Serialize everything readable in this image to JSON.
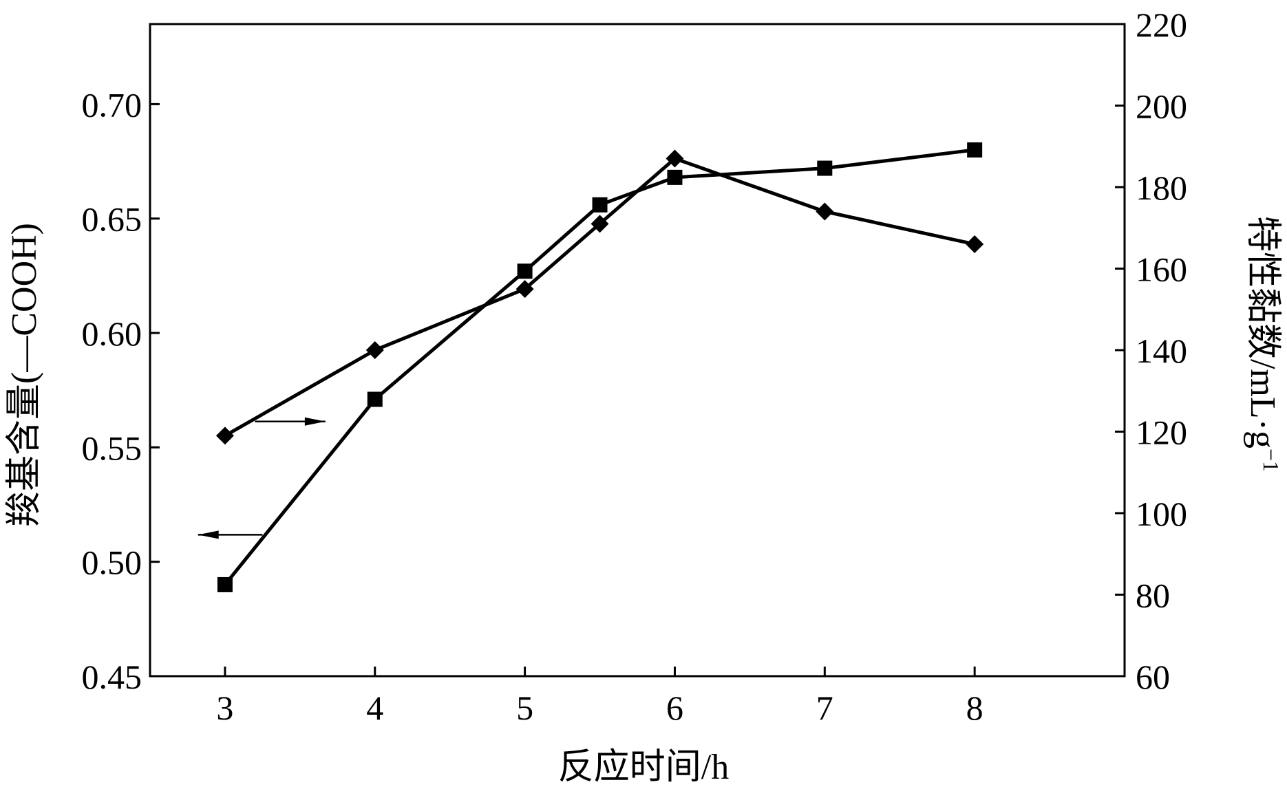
{
  "chart_data": {
    "type": "line",
    "title": "",
    "xlabel": "反应时间/h",
    "ylabel_left": "羧基含量(—COOH)",
    "ylabel_right_main": "特性黏数/mL·g",
    "ylabel_right_sup": "−1",
    "xlim": [
      2.5,
      9.0
    ],
    "ylim_left": [
      0.45,
      0.735
    ],
    "ylim_right": [
      60,
      220
    ],
    "x_ticks": [
      3,
      4,
      5,
      6,
      7,
      8
    ],
    "x_tick_labels": [
      "3",
      "4",
      "5",
      "6",
      "7",
      "8"
    ],
    "y_left_ticks": [
      0.45,
      0.5,
      0.55,
      0.6,
      0.65,
      0.7
    ],
    "y_left_tick_labels": [
      "0.45",
      "0.50",
      "0.55",
      "0.60",
      "0.65",
      "0.70"
    ],
    "y_right_ticks": [
      60,
      80,
      100,
      120,
      140,
      160,
      180,
      200,
      220
    ],
    "y_right_tick_labels": [
      "60",
      "80",
      "100",
      "120",
      "140",
      "160",
      "180",
      "200",
      "220"
    ],
    "grid": false,
    "series": [
      {
        "axis": "left",
        "marker": "square",
        "x": [
          3,
          4,
          5,
          5.5,
          6,
          7,
          8
        ],
        "values": [
          0.49,
          0.571,
          0.627,
          0.656,
          0.668,
          0.672,
          0.68
        ]
      },
      {
        "axis": "right",
        "marker": "diamond",
        "x": [
          3,
          4,
          5,
          5.5,
          6,
          7,
          8
        ],
        "values": [
          119,
          140,
          155,
          171,
          187,
          174,
          166
        ]
      }
    ],
    "annotations": [
      {
        "kind": "arrow",
        "direction": "right",
        "refers_to": "right-axis series"
      },
      {
        "kind": "arrow",
        "direction": "left",
        "refers_to": "left-axis series"
      }
    ]
  }
}
